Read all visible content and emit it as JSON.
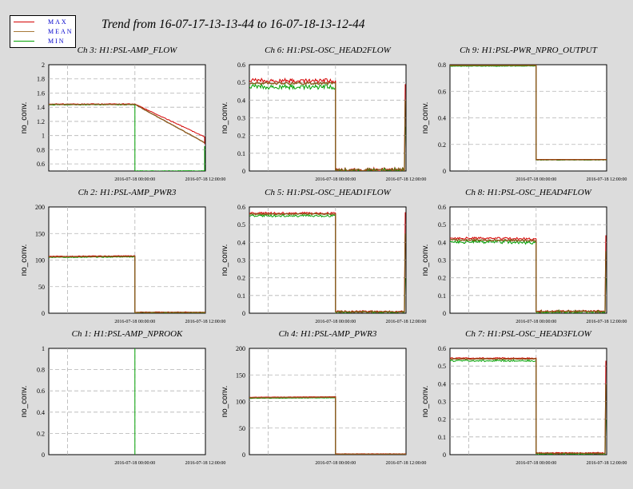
{
  "title": "Trend from 16-07-17-13-13-44 to 16-07-18-13-12-44",
  "legend": [
    {
      "label": "MAX",
      "color": "#d40000"
    },
    {
      "label": "MEAN",
      "color": "#a87a3a"
    },
    {
      "label": "MIN",
      "color": "#00a000"
    }
  ],
  "colors": {
    "max": "#d40000",
    "mean": "#8b5a1e",
    "min": "#00a000",
    "grid": "#b4b4b4",
    "background": "#dcdcdc"
  },
  "chart_data": [
    {
      "type": "line",
      "title": "Ch 3: H1:PSL-AMP_FLOW",
      "ylabel": "no_conv.",
      "yticks": [
        "0.6",
        "0.8",
        "1",
        "1.2",
        "1.4",
        "1.6",
        "1.8",
        "2"
      ],
      "ylim": [
        0.5,
        2.0
      ],
      "xtick_labels": [
        "2016-07-18 00:00:00",
        "2016-07-18 12:00:00"
      ],
      "grid": true,
      "series": [
        {
          "name": "MAX",
          "points": [
            [
              0,
              1.445
            ],
            [
              0.55,
              1.445
            ],
            [
              0.55,
              null
            ],
            [
              0.995,
              0.98
            ],
            [
              0.995,
              0.88
            ]
          ],
          "noise": 0.005
        },
        {
          "name": "MEAN",
          "points": [
            [
              0,
              1.44
            ],
            [
              0.55,
              1.44
            ],
            [
              0.55,
              null
            ],
            [
              0.995,
              0.9
            ]
          ],
          "noise": 0.003
        },
        {
          "name": "MIN",
          "points": [
            [
              0,
              1.435
            ],
            [
              0.55,
              1.435
            ],
            [
              0.55,
              0.5
            ],
            [
              0.995,
              0.5
            ],
            [
              0.995,
              0.85
            ]
          ],
          "noise": 0.005
        }
      ]
    },
    {
      "type": "line",
      "title": "Ch 6: H1:PSL-OSC_HEAD2FLOW",
      "ylabel": "no_conv.",
      "yticks": [
        "0",
        "0.1",
        "0.2",
        "0.3",
        "0.4",
        "0.5",
        "0.6"
      ],
      "ylim": [
        0,
        0.6
      ],
      "xtick_labels": [
        "2016-07-18 00:00:00",
        "2016-07-18 12:00:00"
      ],
      "grid": true,
      "series": [
        {
          "name": "MAX",
          "points": [
            [
              0,
              0.51
            ],
            [
              0.55,
              0.51
            ],
            [
              0.55,
              0.008
            ],
            [
              0.99,
              0.008
            ],
            [
              0.995,
              0.49
            ]
          ],
          "noise": 0.012
        },
        {
          "name": "MEAN",
          "points": [
            [
              0,
              0.495
            ],
            [
              0.55,
              0.495
            ],
            [
              0.55,
              0.005
            ],
            [
              0.99,
              0.005
            ],
            [
              0.995,
              0.4
            ]
          ],
          "noise": 0.006
        },
        {
          "name": "MIN",
          "points": [
            [
              0,
              0.475
            ],
            [
              0.55,
              0.475
            ],
            [
              0.55,
              0.003
            ],
            [
              0.99,
              0.003
            ],
            [
              0.995,
              0.25
            ]
          ],
          "noise": 0.014
        }
      ]
    },
    {
      "type": "line",
      "title": "Ch 9: H1:PSL-PWR_NPRO_OUTPUT",
      "ylabel": "no_conv.",
      "yticks": [
        "0",
        "0.2",
        "0.4",
        "0.6",
        "0.8"
      ],
      "ylim": [
        0,
        0.8
      ],
      "xtick_labels": [
        "2016-07-18 00:00:00",
        "2016-07-18 12:00:00"
      ],
      "grid": true,
      "series": [
        {
          "name": "MAX",
          "points": [
            [
              0,
              0.8
            ],
            [
              0.55,
              0.8
            ],
            [
              0.55,
              0.087
            ],
            [
              1.0,
              0.087
            ]
          ],
          "noise": 0.0
        },
        {
          "name": "MEAN",
          "points": [
            [
              0,
              0.795
            ],
            [
              0.55,
              0.795
            ],
            [
              0.55,
              0.085
            ],
            [
              1.0,
              0.085
            ]
          ],
          "noise": 0.0
        },
        {
          "name": "MIN",
          "points": [
            [
              0,
              0.79
            ],
            [
              0.55,
              0.79
            ],
            [
              0.55,
              0.083
            ],
            [
              1.0,
              0.083
            ]
          ],
          "noise": 0.002
        }
      ]
    },
    {
      "type": "line",
      "title": "Ch 2: H1:PSL-AMP_PWR3",
      "ylabel": "no_conv.",
      "yticks": [
        "0",
        "50",
        "100",
        "150",
        "200"
      ],
      "ylim": [
        0,
        200
      ],
      "xtick_labels": [
        "2016-07-18 00:00:00",
        "2016-07-18 12:00:00"
      ],
      "grid": true,
      "series": [
        {
          "name": "MAX",
          "points": [
            [
              0,
              107
            ],
            [
              0.55,
              108
            ],
            [
              0.55,
              2
            ],
            [
              1.0,
              2
            ]
          ],
          "noise": 0.6
        },
        {
          "name": "MEAN",
          "points": [
            [
              0,
              106
            ],
            [
              0.55,
              107
            ],
            [
              0.55,
              1.5
            ],
            [
              1.0,
              1.5
            ]
          ],
          "noise": 0.3
        },
        {
          "name": "MIN",
          "points": [
            [
              0,
              105
            ],
            [
              0.55,
              106
            ],
            [
              0.55,
              1
            ],
            [
              1.0,
              1
            ]
          ],
          "noise": 0.6
        }
      ]
    },
    {
      "type": "line",
      "title": "Ch 5: H1:PSL-OSC_HEAD1FLOW",
      "ylabel": "no_conv.",
      "yticks": [
        "0",
        "0.1",
        "0.2",
        "0.3",
        "0.4",
        "0.5",
        "0.6"
      ],
      "ylim": [
        0,
        0.6
      ],
      "xtick_labels": [
        "2016-07-18 00:00:00",
        "2016-07-18 12:00:00"
      ],
      "grid": true,
      "series": [
        {
          "name": "MAX",
          "points": [
            [
              0,
              0.565
            ],
            [
              0.55,
              0.565
            ],
            [
              0.55,
              0.01
            ],
            [
              0.99,
              0.01
            ],
            [
              0.995,
              0.57
            ]
          ],
          "noise": 0.005
        },
        {
          "name": "MEAN",
          "points": [
            [
              0,
              0.56
            ],
            [
              0.55,
              0.56
            ],
            [
              0.55,
              0.008
            ],
            [
              0.99,
              0.008
            ],
            [
              0.995,
              0.45
            ]
          ],
          "noise": 0.003
        },
        {
          "name": "MIN",
          "points": [
            [
              0,
              0.55
            ],
            [
              0.55,
              0.55
            ],
            [
              0.55,
              0.006
            ],
            [
              0.99,
              0.006
            ],
            [
              0.995,
              0.2
            ]
          ],
          "noise": 0.006
        }
      ]
    },
    {
      "type": "line",
      "title": "Ch 8: H1:PSL-OSC_HEAD4FLOW",
      "ylabel": "no_conv.",
      "yticks": [
        "0",
        "0.1",
        "0.2",
        "0.3",
        "0.4",
        "0.5",
        "0.6"
      ],
      "ylim": [
        0,
        0.6
      ],
      "xtick_labels": [
        "2016-07-18 00:00:00",
        "2016-07-18 12:00:00"
      ],
      "grid": true,
      "series": [
        {
          "name": "MAX",
          "points": [
            [
              0,
              0.425
            ],
            [
              0.55,
              0.42
            ],
            [
              0.55,
              0.012
            ],
            [
              0.99,
              0.012
            ],
            [
              0.995,
              0.44
            ]
          ],
          "noise": 0.006
        },
        {
          "name": "MEAN",
          "points": [
            [
              0,
              0.415
            ],
            [
              0.55,
              0.41
            ],
            [
              0.55,
              0.009
            ],
            [
              0.99,
              0.009
            ],
            [
              0.995,
              0.35
            ]
          ],
          "noise": 0.004
        },
        {
          "name": "MIN",
          "points": [
            [
              0,
              0.405
            ],
            [
              0.55,
              0.4
            ],
            [
              0.55,
              0.006
            ],
            [
              0.99,
              0.006
            ],
            [
              0.995,
              0.2
            ]
          ],
          "noise": 0.01
        }
      ]
    },
    {
      "type": "line",
      "title": "Ch 1: H1:PSL-AMP_NPROOK",
      "ylabel": "no_conv.",
      "yticks": [
        "0",
        "0.2",
        "0.4",
        "0.6",
        "0.8",
        "1"
      ],
      "ylim": [
        0,
        1.0
      ],
      "xtick_labels": [
        "2016-07-18 00:00:00",
        "2016-07-18 12:00:00"
      ],
      "grid": true,
      "series": [
        {
          "name": "MAX",
          "points": [],
          "noise": 0
        },
        {
          "name": "MEAN",
          "points": [],
          "noise": 0
        },
        {
          "name": "MIN",
          "points": [
            [
              0.55,
              1.0
            ],
            [
              0.55,
              0.0
            ]
          ],
          "noise": 0
        }
      ]
    },
    {
      "type": "line",
      "title": "Ch 4: H1:PSL-AMP_PWR3",
      "ylabel": "no_conv.",
      "yticks": [
        "0",
        "50",
        "100",
        "150",
        "200"
      ],
      "ylim": [
        0,
        200
      ],
      "xtick_labels": [
        "2016-07-18 00:00:00",
        "2016-07-18 12:00:00"
      ],
      "grid": true,
      "series": [
        {
          "name": "MAX",
          "points": [
            [
              0,
              108
            ],
            [
              0.55,
              109
            ],
            [
              0.55,
              1.5
            ],
            [
              1.0,
              1.5
            ]
          ],
          "noise": 0.3
        },
        {
          "name": "MEAN",
          "points": [
            [
              0,
              107
            ],
            [
              0.55,
              108
            ],
            [
              0.55,
              1
            ],
            [
              1.0,
              1
            ]
          ],
          "noise": 0.2
        },
        {
          "name": "MIN",
          "points": [
            [
              0,
              106
            ],
            [
              0.55,
              107
            ],
            [
              0.55,
              0.5
            ],
            [
              1.0,
              0.5
            ]
          ],
          "noise": 0.4
        }
      ]
    },
    {
      "type": "line",
      "title": "Ch 7: H1:PSL-OSC_HEAD3FLOW",
      "ylabel": "no_conv.",
      "yticks": [
        "0",
        "0.1",
        "0.2",
        "0.3",
        "0.4",
        "0.5",
        "0.6"
      ],
      "ylim": [
        0,
        0.6
      ],
      "xtick_labels": [
        "2016-07-18 00:00:00",
        "2016-07-18 12:00:00"
      ],
      "grid": true,
      "series": [
        {
          "name": "MAX",
          "points": [
            [
              0,
              0.545
            ],
            [
              0.55,
              0.545
            ],
            [
              0.55,
              0.01
            ],
            [
              0.99,
              0.01
            ],
            [
              0.995,
              0.53
            ]
          ],
          "noise": 0.003
        },
        {
          "name": "MEAN",
          "points": [
            [
              0,
              0.54
            ],
            [
              0.55,
              0.54
            ],
            [
              0.55,
              0.007
            ],
            [
              0.99,
              0.007
            ],
            [
              0.995,
              0.4
            ]
          ],
          "noise": 0.002
        },
        {
          "name": "MIN",
          "points": [
            [
              0,
              0.53
            ],
            [
              0.55,
              0.53
            ],
            [
              0.55,
              0.004
            ],
            [
              0.99,
              0.004
            ],
            [
              0.995,
              0.2
            ]
          ],
          "noise": 0.005
        }
      ]
    }
  ]
}
